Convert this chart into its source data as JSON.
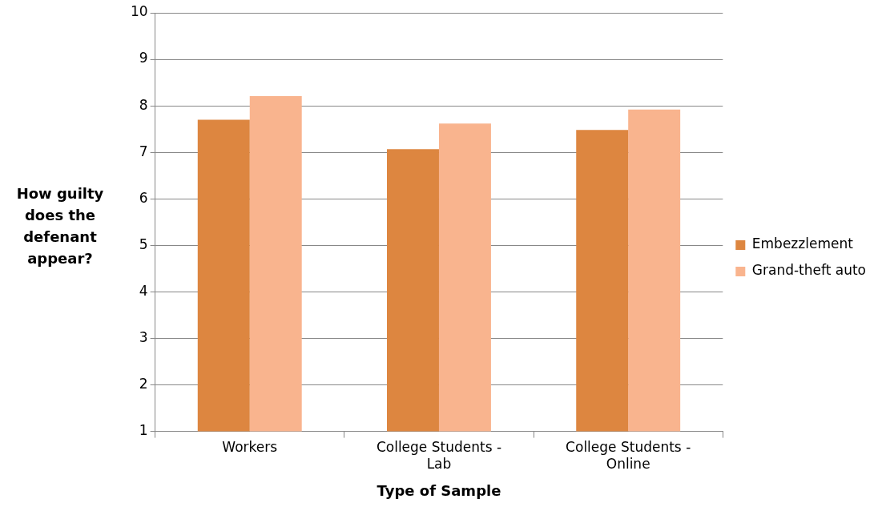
{
  "chart_data": {
    "type": "bar",
    "xlabel": "Type of Sample",
    "ylabel": "How guilty does the defenant appear?",
    "categories": [
      "Workers",
      "College Students - Lab",
      "College Students - Online"
    ],
    "series": [
      {
        "name": "Embezzlement",
        "color": "#dd8640",
        "values": [
          7.7,
          7.07,
          7.48
        ]
      },
      {
        "name": "Grand-theft auto",
        "color": "#f9b48e",
        "values": [
          8.21,
          7.62,
          7.92
        ]
      }
    ],
    "ylim": [
      1,
      10
    ],
    "yticks": [
      1,
      2,
      3,
      4,
      5,
      6,
      7,
      8,
      9,
      10
    ],
    "grid": "y",
    "legend": "right"
  }
}
